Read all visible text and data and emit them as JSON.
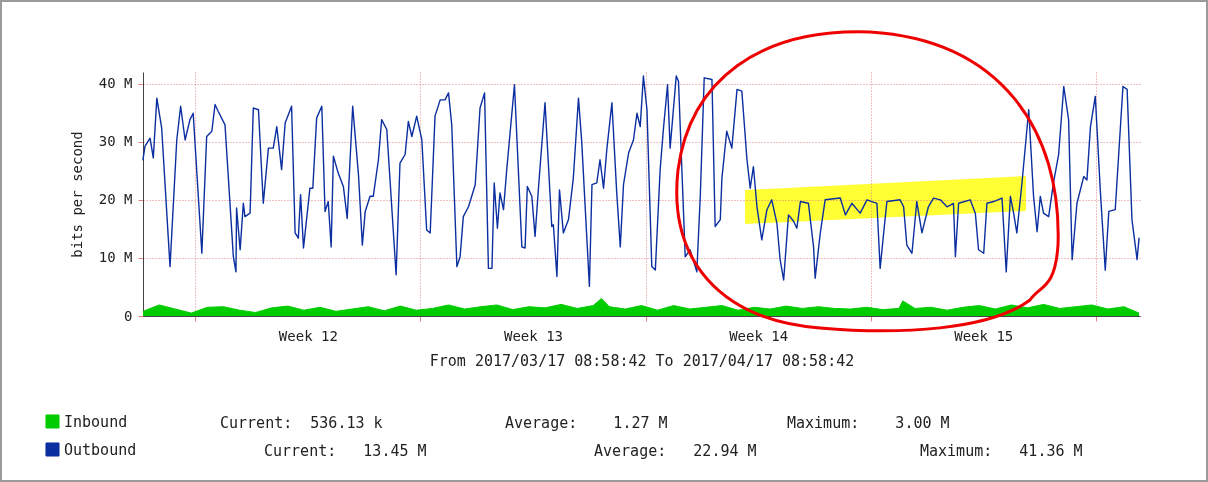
{
  "chart_data": {
    "type": "line",
    "xlabel": "From 2017/03/17 08:58:42 To 2017/04/17 08:58:42",
    "ylabel": "bits per second",
    "xlim": [
      "2017-03-17T08:58",
      "2017-04-17T08:58"
    ],
    "xticks": [
      {
        "value": "2017-03-19T00:00",
        "label": null
      },
      {
        "value": "2017-03-22T12:00",
        "label": "Week 12"
      },
      {
        "value": "2017-03-26T00:00",
        "label": null
      },
      {
        "value": "2017-03-29T12:00",
        "label": "Week 13"
      },
      {
        "value": "2017-04-02T00:00",
        "label": null
      },
      {
        "value": "2017-04-05T12:00",
        "label": "Week 14"
      },
      {
        "value": "2017-04-09T00:00",
        "label": null
      },
      {
        "value": "2017-04-12T12:00",
        "label": "Week 15"
      },
      {
        "value": "2017-04-16T00:00",
        "label": null
      }
    ],
    "ylim": [
      0,
      42
    ],
    "yticks": [
      0,
      {
        "value": 10,
        "label": "10 M"
      },
      {
        "value": 20,
        "label": "20 M"
      },
      {
        "value": 30,
        "label": "30 M"
      },
      {
        "value": 40,
        "label": "40 M"
      }
    ],
    "grid": true,
    "legend": "bottom left",
    "annotations": [
      "Current:  536.13 k",
      "Average:    1.27 M",
      "Maximum:    3.00 M",
      "Current:   13.45 M",
      "Average:   22.94 M",
      "Maximum:   41.36 M"
    ],
    "series": [
      {
        "name": "Inbound",
        "type": "area",
        "color": "#00cc00",
        "x": [
          "2017-03-17T09:00",
          "2017-03-17T21:00",
          "2017-03-18T09:00",
          "2017-03-18T21:00",
          "2017-03-19T09:00",
          "2017-03-19T21:00",
          "2017-03-20T09:00",
          "2017-03-20T21:00",
          "2017-03-21T09:00",
          "2017-03-21T21:00",
          "2017-03-22T09:00",
          "2017-03-22T21:00",
          "2017-03-23T09:00",
          "2017-03-23T21:00",
          "2017-03-24T09:00",
          "2017-03-24T21:00",
          "2017-03-25T09:00",
          "2017-03-25T21:00",
          "2017-03-26T09:00",
          "2017-03-26T21:00",
          "2017-03-27T09:00",
          "2017-03-27T21:00",
          "2017-03-28T09:00",
          "2017-03-28T21:00",
          "2017-03-29T09:00",
          "2017-03-29T21:00",
          "2017-03-30T09:00",
          "2017-03-30T21:00",
          "2017-03-31T09:00",
          "2017-03-31T15:00",
          "2017-03-31T21:00",
          "2017-04-01T09:00",
          "2017-04-01T21:00",
          "2017-04-02T09:00",
          "2017-04-02T21:00",
          "2017-04-03T09:00",
          "2017-04-03T21:00",
          "2017-04-04T09:00",
          "2017-04-04T21:00",
          "2017-04-05T09:00",
          "2017-04-05T21:00",
          "2017-04-06T09:00",
          "2017-04-06T21:00",
          "2017-04-07T09:00",
          "2017-04-07T21:00",
          "2017-04-08T09:00",
          "2017-04-08T21:00",
          "2017-04-09T09:00",
          "2017-04-09T21:00",
          "2017-04-10T00:00",
          "2017-04-10T09:00",
          "2017-04-10T21:00",
          "2017-04-11T09:00",
          "2017-04-11T21:00",
          "2017-04-12T09:00",
          "2017-04-12T21:00",
          "2017-04-13T09:00",
          "2017-04-13T21:00",
          "2017-04-14T09:00",
          "2017-04-14T21:00",
          "2017-04-15T09:00",
          "2017-04-15T21:00",
          "2017-04-16T09:00",
          "2017-04-16T21:00",
          "2017-04-17T08:15"
        ],
        "values": [
          0.8,
          1.9,
          1.2,
          0.5,
          1.5,
          1.6,
          1.0,
          0.6,
          1.4,
          1.7,
          1.0,
          1.5,
          0.8,
          1.2,
          1.6,
          0.9,
          1.7,
          1.0,
          1.3,
          1.9,
          1.2,
          1.6,
          1.9,
          1.1,
          1.6,
          1.4,
          2.0,
          1.3,
          1.8,
          3.0,
          1.6,
          1.2,
          1.8,
          1.0,
          1.8,
          1.2,
          1.5,
          1.8,
          1.0,
          1.5,
          1.2,
          1.7,
          1.3,
          1.6,
          1.3,
          1.2,
          1.5,
          1.1,
          1.3,
          2.6,
          1.3,
          1.5,
          1.0,
          1.5,
          1.8,
          1.2,
          1.9,
          1.4,
          2.0,
          1.3,
          1.6,
          1.9,
          1.2,
          1.6,
          0.5
        ]
      },
      {
        "name": "Outbound",
        "color": "#0b2fa0",
        "x": [
          "2017-03-17T08:58",
          "2017-03-17T10:24",
          "2017-03-17T14:15",
          "2017-03-17T16:39",
          "2017-03-17T19:17",
          "2017-03-17T22:53",
          "2017-03-18T05:08",
          "2017-03-18T10:10",
          "2017-03-18T13:03",
          "2017-03-18T16:24",
          "2017-03-18T20:00",
          "2017-03-18T22:24",
          "2017-03-19T04:53",
          "2017-03-19T08:29",
          "2017-03-19T12:20",
          "2017-03-19T14:44",
          "2017-03-19T17:08",
          "2017-03-19T22:10",
          "2017-03-20T04:24",
          "2017-03-20T06:20",
          "2017-03-20T06:48",
          "2017-03-20T09:27",
          "2017-03-20T11:51",
          "2017-03-20T13:03",
          "2017-03-20T16:53",
          "2017-03-20T19:17",
          "2017-03-20T23:08",
          "2017-03-21T02:44",
          "2017-03-21T06:34",
          "2017-03-21T10:10",
          "2017-03-21T12:48",
          "2017-03-21T16:24",
          "2017-03-21T19:03",
          "2017-03-21T23:51",
          "2017-03-22T02:29",
          "2017-03-22T04:53",
          "2017-03-22T06:34",
          "2017-03-22T08:44",
          "2017-03-22T13:32",
          "2017-03-22T15:41",
          "2017-03-22T18:34",
          "2017-03-22T22:24",
          "2017-03-23T00:48",
          "2017-03-23T03:12",
          "2017-03-23T05:22",
          "2017-03-23T07:03",
          "2017-03-23T10:39",
          "2017-03-23T14:29",
          "2017-03-23T17:22",
          "2017-03-23T21:27",
          "2017-03-24T01:46",
          "2017-03-24T04:39",
          "2017-03-24T06:48",
          "2017-03-24T10:24",
          "2017-03-24T12:48",
          "2017-03-24T16:39",
          "2017-03-24T19:03",
          "2017-03-24T22:53",
          "2017-03-25T05:51",
          "2017-03-25T08:44",
          "2017-03-25T12:34",
          "2017-03-25T14:58",
          "2017-03-25T17:36",
          "2017-03-25T21:12",
          "2017-03-26T01:03",
          "2017-03-26T04:39",
          "2017-03-26T07:17",
          "2017-03-26T10:53",
          "2017-03-26T14:44",
          "2017-03-26T18:20",
          "2017-03-26T20:58",
          "2017-03-26T23:22",
          "2017-03-27T03:12",
          "2017-03-27T05:36",
          "2017-03-27T08:00",
          "2017-03-27T11:51",
          "2017-03-27T16:53",
          "2017-03-27T20:29",
          "2017-03-27T23:51",
          "2017-03-28T02:44",
          "2017-03-28T05:22",
          "2017-03-28T07:03",
          "2017-03-28T09:27",
          "2017-03-28T11:22",
          "2017-03-28T14:00",
          "2017-03-28T16:24",
          "2017-03-28T22:10",
          "2017-03-29T03:41",
          "2017-03-29T06:05",
          "2017-03-29T07:46",
          "2017-03-29T11:08",
          "2017-03-29T13:32",
          "2017-03-29T16:10",
          "2017-03-29T20:58",
          "2017-03-29T23:36",
          "2017-03-30T02:00",
          "2017-03-30T03:12",
          "2017-03-30T05:51",
          "2017-03-30T07:46",
          "2017-03-30T10:39",
          "2017-03-30T14:29",
          "2017-03-30T18:05",
          "2017-03-30T21:56",
          "2017-03-31T00:20",
          "2017-03-31T06:05",
          "2017-03-31T08:00",
          "2017-03-31T11:36",
          "2017-03-31T14:00",
          "2017-03-31T16:39",
          "2017-03-31T19:03",
          "2017-03-31T22:53",
          "2017-04-01T02:29",
          "2017-04-01T05:08",
          "2017-04-01T07:32",
          "2017-04-01T11:22",
          "2017-04-01T14:58",
          "2017-04-01T17:36",
          "2017-04-01T20:00",
          "2017-04-01T22:24",
          "2017-04-02T01:03",
          "2017-04-02T04:39",
          "2017-04-02T07:17",
          "2017-04-02T10:53",
          "2017-04-02T13:17",
          "2017-04-02T16:24",
          "2017-04-02T18:20",
          "2017-04-02T22:53",
          "2017-04-03T00:34",
          "2017-04-03T05:36",
          "2017-04-03T09:12",
          "2017-04-03T14:15",
          "2017-04-03T16:53",
          "2017-04-03T19:46",
          "2017-04-04T01:32",
          "2017-04-04T03:56",
          "2017-04-04T07:46",
          "2017-04-04T08:58",
          "2017-04-04T12:34",
          "2017-04-04T16:24",
          "2017-04-04T20:15",
          "2017-04-04T23:51",
          "2017-04-05T03:41",
          "2017-04-05T06:05",
          "2017-04-05T08:29",
          "2017-04-05T11:08",
          "2017-04-05T14:44",
          "2017-04-05T18:34",
          "2017-04-05T22:10",
          "2017-04-06T02:00",
          "2017-04-06T04:24",
          "2017-04-06T07:03",
          "2017-04-06T10:39",
          "2017-04-06T14:29",
          "2017-04-06T16:53",
          "2017-04-06T19:32",
          "2017-04-07T01:32",
          "2017-04-07T05:22",
          "2017-04-07T06:34",
          "2017-04-07T10:24",
          "2017-04-07T14:00",
          "2017-04-08T01:17",
          "2017-04-08T05:08",
          "2017-04-08T09:56",
          "2017-04-08T16:10",
          "2017-04-08T21:12",
          "2017-04-09T04:39",
          "2017-04-09T07:03",
          "2017-04-09T09:41",
          "2017-04-09T12:05",
          "2017-04-09T21:56",
          "2017-04-10T00:34",
          "2017-04-10T02:58",
          "2017-04-10T06:48",
          "2017-04-10T10:24",
          "2017-04-10T14:15",
          "2017-04-10T19:03",
          "2017-04-10T22:53",
          "2017-04-11T03:56",
          "2017-04-11T08:58",
          "2017-04-11T13:46",
          "2017-04-11T15:12",
          "2017-04-11T17:36",
          "2017-04-12T02:15",
          "2017-04-12T06:05",
          "2017-04-12T08:29",
          "2017-04-12T12:20",
          "2017-04-12T14:44",
          "2017-04-12T19:46",
          "2017-04-13T02:00",
          "2017-04-13T05:08",
          "2017-04-13T08:15",
          "2017-04-13T10:39",
          "2017-04-13T13:03",
          "2017-04-13T16:53",
          "2017-04-13T21:56",
          "2017-04-14T01:32",
          "2017-04-14T04:10",
          "2017-04-14T06:34",
          "2017-04-14T08:58",
          "2017-04-14T12:48",
          "2017-04-14T16:24",
          "2017-04-14T20:15",
          "2017-04-15T00:05",
          "2017-04-15T03:41",
          "2017-04-15T06:20",
          "2017-04-15T09:56",
          "2017-04-15T14:58",
          "2017-04-15T17:22",
          "2017-04-15T20:00",
          "2017-04-15T23:36",
          "2017-04-16T03:27",
          "2017-04-16T07:03",
          "2017-04-16T09:41",
          "2017-04-16T14:29",
          "2017-04-16T20:15",
          "2017-04-16T23:22",
          "2017-04-17T02:58",
          "2017-04-17T06:48",
          "2017-04-17T08:15"
        ],
        "values": [
          26.9,
          29.2,
          30.6,
          27.2,
          37.5,
          32.4,
          8.5,
          30.3,
          36.1,
          30.3,
          33.8,
          34.9,
          10.8,
          30.9,
          31.8,
          36.4,
          35.2,
          32.9,
          10.2,
          7.6,
          18.6,
          11.4,
          19.4,
          17.1,
          17.7,
          35.8,
          35.5,
          19.4,
          28.9,
          28.9,
          32.6,
          25.2,
          33.2,
          36.1,
          14.3,
          13.4,
          20.9,
          11.7,
          22.0,
          22.0,
          34.1,
          36.1,
          18.0,
          19.7,
          11.9,
          27.5,
          24.6,
          22.3,
          16.8,
          36.1,
          24.3,
          12.2,
          18.0,
          20.6,
          20.6,
          26.9,
          33.8,
          32.1,
          7.1,
          26.3,
          27.8,
          33.5,
          30.9,
          34.4,
          30.3,
          14.8,
          14.3,
          34.4,
          37.2,
          37.2,
          38.4,
          32.9,
          8.5,
          10.2,
          17.1,
          18.8,
          22.6,
          35.8,
          38.4,
          8.2,
          8.2,
          22.9,
          15.1,
          21.2,
          18.3,
          25.2,
          39.8,
          11.9,
          11.7,
          22.3,
          20.6,
          13.7,
          22.3,
          36.7,
          25.7,
          15.4,
          15.7,
          6.8,
          21.7,
          14.3,
          16.6,
          23.7,
          37.5,
          30.1,
          5.1,
          22.6,
          22.9,
          26.9,
          22.0,
          28.6,
          36.7,
          21.2,
          11.9,
          22.6,
          28.1,
          30.3,
          34.9,
          32.6,
          41.3,
          35.5,
          8.5,
          7.9,
          25.2,
          32.1,
          39.8,
          28.9,
          41.3,
          40.4,
          10.2,
          11.4,
          7.6,
          20.9,
          41.0,
          40.7,
          15.4,
          16.6,
          23.7,
          31.8,
          28.9,
          39.0,
          38.7,
          26.9,
          22.0,
          25.7,
          18.8,
          13.1,
          18.3,
          20.0,
          16.0,
          9.7,
          6.2,
          17.4,
          16.3,
          15.1,
          19.7,
          19.4,
          11.9,
          6.5,
          14.3,
          20.0,
          20.3,
          17.4,
          19.4,
          17.7,
          20.0,
          19.4,
          8.2,
          14.3,
          19.7,
          20.0,
          18.8,
          12.2,
          10.8,
          19.7,
          14.3,
          18.8,
          20.3,
          20.0,
          18.8,
          19.4,
          10.2,
          19.4,
          20.0,
          17.7,
          11.4,
          10.8,
          19.4,
          19.7,
          20.3,
          7.6,
          20.6,
          17.7,
          14.3,
          22.9,
          35.5,
          20.6,
          14.5,
          20.6,
          17.7,
          17.1,
          22.9,
          27.8,
          39.5,
          33.8,
          9.7,
          19.4,
          24.0,
          23.4,
          32.6,
          37.8,
          21.2,
          7.9,
          18.0,
          18.3,
          39.5,
          39.0,
          16.6,
          9.7,
          13.4
        ]
      }
    ]
  }
}
